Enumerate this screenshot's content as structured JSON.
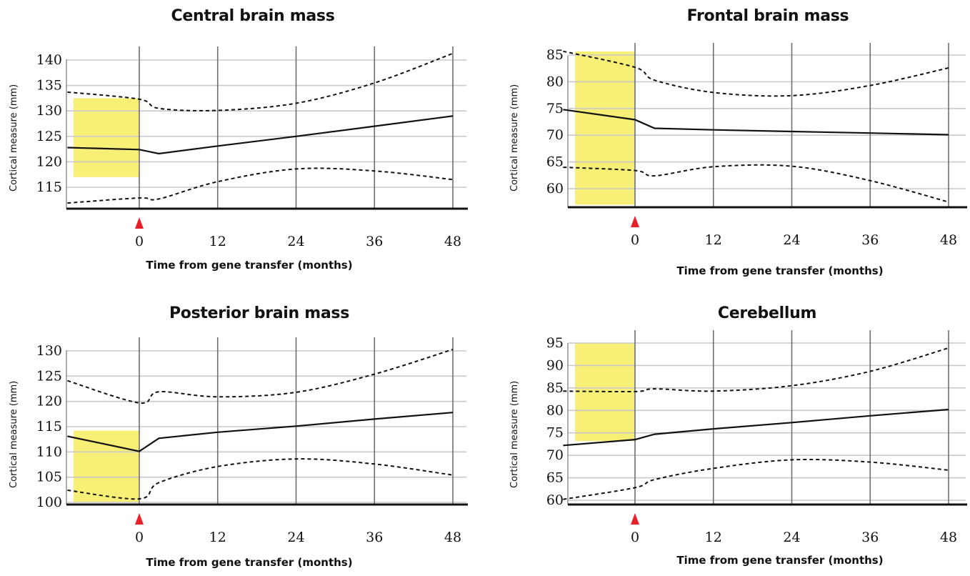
{
  "chart_data": [
    {
      "type": "line",
      "title": "Central brain mass",
      "xlabel": "Time from gene transfer (months)",
      "ylabel": "Cortical measure (mm)",
      "xticks": [
        0,
        12,
        24,
        36,
        48
      ],
      "xtick_labels": [
        "0",
        "12",
        "24",
        "36",
        "48"
      ],
      "yticks": [
        115,
        120,
        125,
        130,
        135,
        140
      ],
      "ytick_labels": [
        "115",
        "120",
        "125",
        "130",
        "135",
        "140"
      ],
      "xlim": [
        -13,
        50
      ],
      "ylim": [
        111,
        141
      ],
      "grid": true,
      "highlight": {
        "color": "#f7ef76",
        "x": [
          -12,
          0
        ],
        "y": [
          117,
          132.5
        ]
      },
      "marker": {
        "x": 0,
        "color": "#e8202a"
      },
      "series": [
        {
          "style": "solid",
          "x": [
            -11,
            0,
            3,
            12,
            24,
            36,
            48
          ],
          "y": [
            122.8,
            122.4,
            121.6,
            123.1,
            125.0,
            127.0,
            129.0
          ]
        },
        {
          "style": "dashed",
          "x": [
            -11,
            0,
            3,
            12,
            24,
            36,
            48
          ],
          "y": [
            133.7,
            132.3,
            130.5,
            130.1,
            131.5,
            135.5,
            141.3
          ]
        },
        {
          "style": "dashed",
          "x": [
            -11,
            0,
            3,
            12,
            24,
            36,
            48
          ],
          "y": [
            111.9,
            112.9,
            112.7,
            116.1,
            118.6,
            118.2,
            116.5
          ]
        }
      ]
    },
    {
      "type": "line",
      "title": "Frontal brain mass",
      "xlabel": "Time from gene transfer (months)",
      "ylabel": "Cortical measure (mm)",
      "xticks": [
        0,
        12,
        24,
        36,
        48
      ],
      "xtick_labels": [
        "0",
        "12",
        "24",
        "36",
        "48"
      ],
      "yticks": [
        60,
        65,
        70,
        75,
        80,
        85
      ],
      "ytick_labels": [
        "60",
        "65",
        "70",
        "75",
        "80",
        "85"
      ],
      "xlim": [
        -13,
        50
      ],
      "ylim": [
        57,
        87
      ],
      "grid": true,
      "highlight": {
        "color": "#f7ef76",
        "x": [
          -12,
          0
        ],
        "y": [
          57,
          87
        ]
      },
      "marker": {
        "x": 0,
        "color": "#e8202a"
      },
      "series": [
        {
          "style": "solid",
          "x": [
            -11,
            0,
            3,
            12,
            24,
            36,
            48
          ],
          "y": [
            74.8,
            72.9,
            71.3,
            71.0,
            70.7,
            70.4,
            70.1
          ]
        },
        {
          "style": "dashed",
          "x": [
            -11,
            0,
            3,
            12,
            24,
            36,
            48
          ],
          "y": [
            85.7,
            82.7,
            80.3,
            78.0,
            77.4,
            79.3,
            82.6
          ]
        },
        {
          "style": "dashed",
          "x": [
            -11,
            0,
            3,
            12,
            24,
            36,
            48
          ],
          "y": [
            64.0,
            63.4,
            62.4,
            64.1,
            64.2,
            61.5,
            57.5
          ]
        }
      ]
    },
    {
      "type": "line",
      "title": "Posterior brain mass",
      "xlabel": "Time from gene transfer (months)",
      "ylabel": "Cortical measure (mm)",
      "xticks": [
        0,
        12,
        24,
        36,
        48
      ],
      "xtick_labels": [
        "0",
        "12",
        "24",
        "36",
        "48"
      ],
      "yticks": [
        100,
        105,
        110,
        115,
        120,
        125,
        130
      ],
      "ytick_labels": [
        "100",
        "105",
        "110",
        "115",
        "120",
        "125",
        "130"
      ],
      "xlim": [
        -13,
        50
      ],
      "ylim": [
        99.5,
        131
      ],
      "grid": true,
      "highlight": {
        "color": "#f7ef76",
        "x": [
          -12,
          0
        ],
        "y": [
          100,
          114.2
        ]
      },
      "marker": {
        "x": 0,
        "color": "#e8202a"
      },
      "series": [
        {
          "style": "solid",
          "x": [
            -11,
            0,
            3,
            12,
            24,
            36,
            48
          ],
          "y": [
            113.1,
            110.1,
            112.7,
            113.9,
            115.1,
            116.5,
            117.8
          ]
        },
        {
          "style": "dashed",
          "x": [
            -11,
            0,
            3,
            12,
            24,
            36,
            48
          ],
          "y": [
            124.1,
            119.7,
            121.9,
            120.9,
            121.8,
            125.4,
            130.3
          ]
        },
        {
          "style": "dashed",
          "x": [
            -11,
            0,
            3,
            12,
            24,
            36,
            48
          ],
          "y": [
            102.4,
            100.7,
            103.9,
            107.1,
            108.6,
            107.6,
            105.4
          ]
        }
      ]
    },
    {
      "type": "line",
      "title": "Cerebellum",
      "xlabel": "Time from gene transfer (months)",
      "ylabel": "Cortical measure (mm)",
      "xticks": [
        0,
        12,
        24,
        36,
        48
      ],
      "xtick_labels": [
        "0",
        "12",
        "24",
        "36",
        "48"
      ],
      "yticks": [
        60,
        65,
        70,
        75,
        80,
        85,
        90,
        95
      ],
      "ytick_labels": [
        "60",
        "65",
        "70",
        "75",
        "80",
        "85",
        "90",
        "95"
      ],
      "xlim": [
        -13,
        50
      ],
      "ylim": [
        59,
        95
      ],
      "grid": true,
      "highlight": {
        "color": "#f7ef76",
        "x": [
          -12,
          0
        ],
        "y": [
          73.2,
          95
        ]
      },
      "marker": {
        "x": 0,
        "color": "#e8202a"
      },
      "series": [
        {
          "style": "solid",
          "x": [
            -11,
            0,
            3,
            12,
            24,
            36,
            48
          ],
          "y": [
            72.2,
            73.5,
            74.7,
            75.9,
            77.3,
            78.8,
            80.2
          ]
        },
        {
          "style": "dashed",
          "x": [
            -11,
            0,
            3,
            12,
            24,
            36,
            48
          ],
          "y": [
            84.3,
            84.2,
            84.8,
            84.3,
            85.5,
            88.7,
            93.9
          ]
        },
        {
          "style": "dashed",
          "x": [
            -11,
            0,
            3,
            12,
            24,
            36,
            48
          ],
          "y": [
            60.2,
            62.8,
            64.6,
            67.1,
            69.0,
            68.5,
            66.7
          ]
        }
      ]
    }
  ]
}
